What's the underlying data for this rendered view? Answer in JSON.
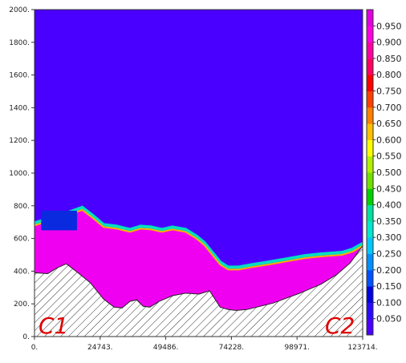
{
  "chart_data": {
    "type": "heatmap",
    "x_ticks": [
      "0.",
      "24743.",
      "49486.",
      "74228.",
      "98971.",
      "123714."
    ],
    "x_tick_values": [
      0,
      24743,
      49486,
      74228,
      98971,
      123714
    ],
    "y_ticks": [
      "0.",
      "200.",
      "400.",
      "600.",
      "800.",
      "1000.",
      "1200.",
      "1400.",
      "1600.",
      "1800.",
      "2000."
    ],
    "y_tick_values": [
      0,
      200,
      400,
      600,
      800,
      1000,
      1200,
      1400,
      1600,
      1800,
      2000
    ],
    "xlim": [
      0,
      123714
    ],
    "ylim": [
      0,
      2000
    ],
    "colorbar": {
      "labels": [
        "0.050",
        "0.100",
        "0.150",
        "0.200",
        "0.250",
        "0.300",
        "0.350",
        "0.400",
        "0.450",
        "0.500",
        "0.550",
        "0.600",
        "0.650",
        "0.700",
        "0.750",
        "0.800",
        "0.850",
        "0.900",
        "0.950"
      ],
      "min": 0,
      "max": 1,
      "colors": [
        "#4a00ff",
        "#2a0aff",
        "#0000e0",
        "#0050ff",
        "#0090ff",
        "#00c8ff",
        "#00e8d0",
        "#00e0a0",
        "#00d000",
        "#70e000",
        "#b0f000",
        "#ffff00",
        "#ffc000",
        "#ff8000",
        "#ff4000",
        "#ff0000",
        "#ff0060",
        "#ff00a0",
        "#ff00e0",
        "#e000e0"
      ]
    },
    "background_color": "#4a00ff",
    "upper_layer_color": "#f000f0",
    "terrain_color": "#333333",
    "annotations": [
      "C1",
      "C2"
    ],
    "terrain_profile": [
      [
        0,
        390
      ],
      [
        5000,
        385
      ],
      [
        8500,
        420
      ],
      [
        12000,
        445
      ],
      [
        16000,
        395
      ],
      [
        21000,
        330
      ],
      [
        26000,
        230
      ],
      [
        30000,
        180
      ],
      [
        33000,
        175
      ],
      [
        36000,
        215
      ],
      [
        38500,
        225
      ],
      [
        41000,
        185
      ],
      [
        43500,
        180
      ],
      [
        47000,
        215
      ],
      [
        52000,
        250
      ],
      [
        57000,
        265
      ],
      [
        62000,
        260
      ],
      [
        66000,
        280
      ],
      [
        70000,
        180
      ],
      [
        73000,
        165
      ],
      [
        76000,
        160
      ],
      [
        80000,
        165
      ],
      [
        90000,
        205
      ],
      [
        100000,
        265
      ],
      [
        108000,
        320
      ],
      [
        114000,
        380
      ],
      [
        119000,
        450
      ],
      [
        123714,
        555
      ]
    ],
    "interface_profile": [
      [
        0,
        680
      ],
      [
        5000,
        705
      ],
      [
        12000,
        740
      ],
      [
        18000,
        775
      ],
      [
        22000,
        725
      ],
      [
        26000,
        670
      ],
      [
        31000,
        660
      ],
      [
        36000,
        640
      ],
      [
        40000,
        660
      ],
      [
        44000,
        655
      ],
      [
        48000,
        640
      ],
      [
        52000,
        655
      ],
      [
        57000,
        640
      ],
      [
        61000,
        600
      ],
      [
        64000,
        560
      ],
      [
        67000,
        500
      ],
      [
        70000,
        440
      ],
      [
        73000,
        410
      ],
      [
        77000,
        410
      ],
      [
        82000,
        425
      ],
      [
        88000,
        440
      ],
      [
        95000,
        460
      ],
      [
        102000,
        480
      ],
      [
        108000,
        490
      ],
      [
        112000,
        495
      ],
      [
        116000,
        500
      ],
      [
        120000,
        520
      ],
      [
        123714,
        555
      ]
    ]
  }
}
